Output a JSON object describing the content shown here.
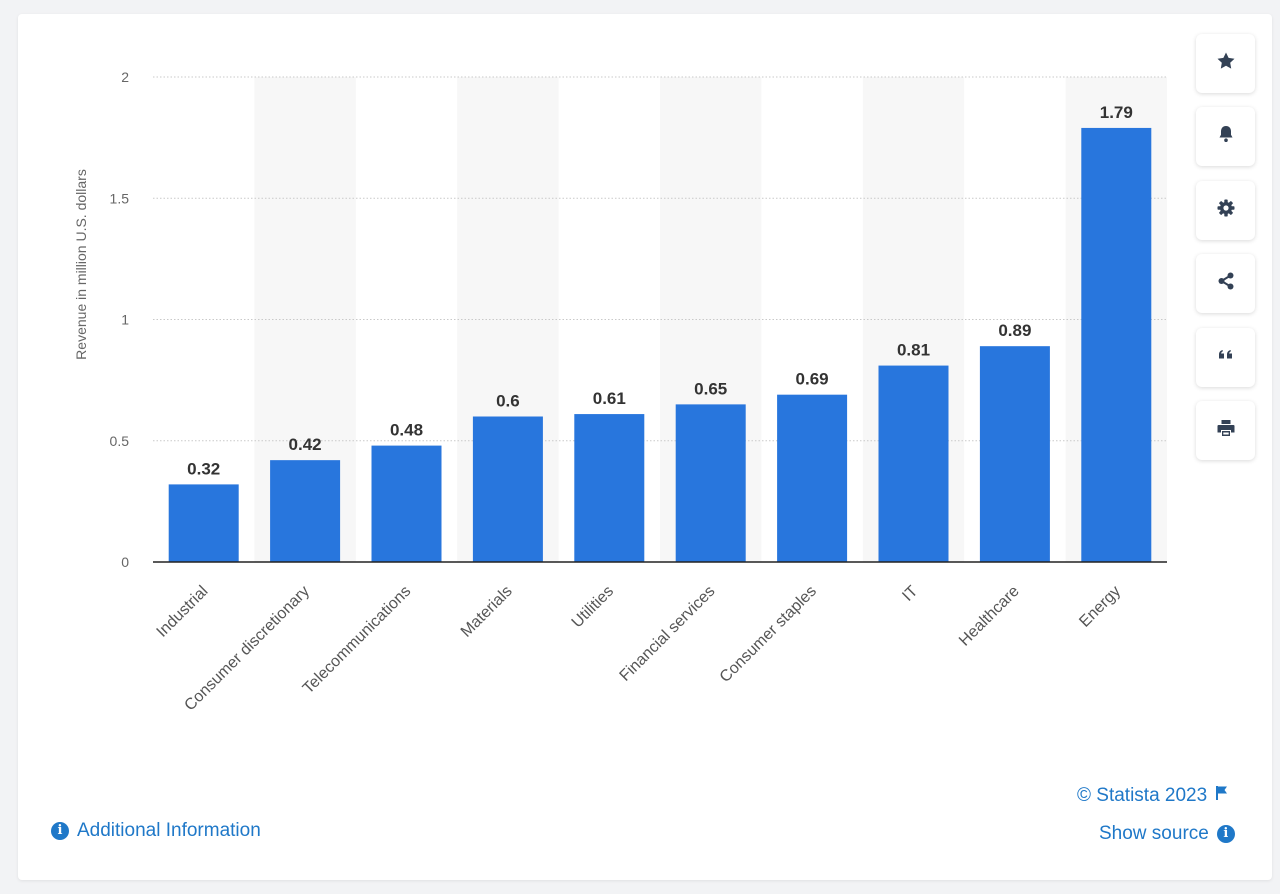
{
  "chart_data": {
    "type": "bar",
    "categories": [
      "Industrial",
      "Consumer discretionary",
      "Telecommunications",
      "Materials",
      "Utilities",
      "Financial services",
      "Consumer staples",
      "IT",
      "Healthcare",
      "Energy"
    ],
    "values": [
      0.32,
      0.42,
      0.48,
      0.6,
      0.61,
      0.65,
      0.69,
      0.81,
      0.89,
      1.79
    ],
    "value_labels": [
      "0.32",
      "0.42",
      "0.48",
      "0.6",
      "0.61",
      "0.65",
      "0.69",
      "0.81",
      "0.89",
      "1.79"
    ],
    "ylabel": "Revenue in million U.S. dollars",
    "ylim": [
      0,
      2
    ],
    "yticks": [
      0,
      0.5,
      1,
      1.5,
      2
    ],
    "ytick_labels": [
      "0",
      "0.5",
      "1",
      "1.5",
      "2"
    ],
    "grid": true,
    "bar_color": "#2876dd",
    "stripe_color": "#f7f7f7"
  },
  "toolbar": {
    "buttons": [
      {
        "name": "star-icon"
      },
      {
        "name": "bell-icon"
      },
      {
        "name": "gear-icon"
      },
      {
        "name": "share-icon"
      },
      {
        "name": "quote-icon"
      },
      {
        "name": "print-icon"
      }
    ]
  },
  "footer": {
    "copyright": "© Statista 2023",
    "show_source": "Show source",
    "additional_info": "Additional Information",
    "link_color": "#1f78c8"
  }
}
